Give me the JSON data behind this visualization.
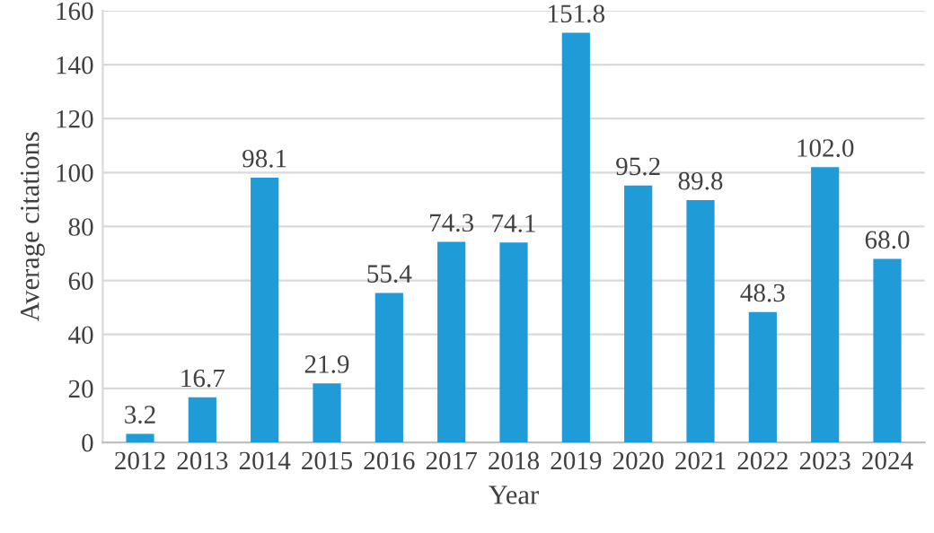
{
  "chart_data": {
    "type": "bar",
    "xlabel": "Year",
    "ylabel": "Average citations",
    "categories": [
      "2012",
      "2013",
      "2014",
      "2015",
      "2016",
      "2017",
      "2018",
      "2019",
      "2020",
      "2021",
      "2022",
      "2023",
      "2024"
    ],
    "values": [
      3.2,
      16.7,
      98.1,
      21.9,
      55.4,
      74.3,
      74.1,
      151.8,
      95.2,
      89.8,
      48.3,
      102.0,
      68.0
    ],
    "value_labels": [
      "3.2",
      "16.7",
      "98.1",
      "21.9",
      "55.4",
      "74.3",
      "74.1",
      "151.8",
      "95.2",
      "89.8",
      "48.3",
      "102.0",
      "68.0"
    ],
    "color": "#1f9bd7",
    "ylim": [
      0,
      160
    ],
    "yticks": [
      0,
      20,
      40,
      60,
      80,
      100,
      120,
      140,
      160
    ],
    "grid": "y",
    "legend": false
  }
}
